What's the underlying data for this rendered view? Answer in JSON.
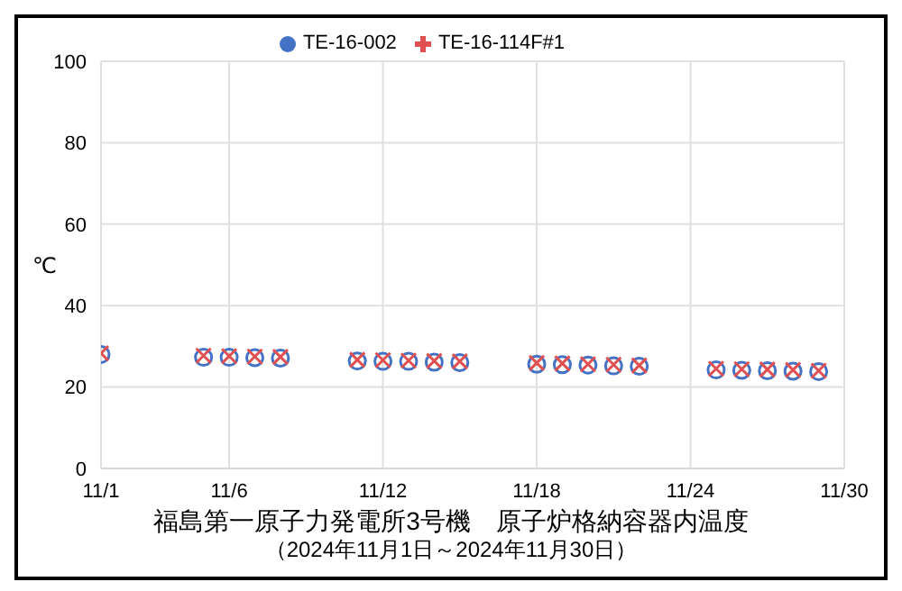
{
  "chart_data": {
    "type": "scatter",
    "title": "福島第一原子力発電所3号機　原子炉格納容器内温度",
    "subtitle": "（2024年11月1日～2024年11月30日）",
    "ylabel": "℃",
    "x": [
      "2024-11-01",
      "2024-11-05",
      "2024-11-06",
      "2024-11-07",
      "2024-11-08",
      "2024-11-11",
      "2024-11-12",
      "2024-11-13",
      "2024-11-14",
      "2024-11-15",
      "2024-11-18",
      "2024-11-19",
      "2024-11-20",
      "2024-11-21",
      "2024-11-22",
      "2024-11-25",
      "2024-11-26",
      "2024-11-27",
      "2024-11-28",
      "2024-11-29"
    ],
    "series": [
      {
        "name": "TE-16-002",
        "color": "#4472c4",
        "marker": "circle",
        "values": [
          28.0,
          27.3,
          27.3,
          27.2,
          27.1,
          26.4,
          26.3,
          26.3,
          26.1,
          26.0,
          25.6,
          25.5,
          25.4,
          25.2,
          25.1,
          24.2,
          24.1,
          24.0,
          23.9,
          23.8
        ]
      },
      {
        "name": "TE-16-114F#1",
        "color": "#e05050",
        "marker": "cross",
        "values": [
          28.3,
          27.7,
          27.6,
          27.5,
          27.4,
          26.7,
          26.6,
          26.5,
          26.4,
          26.3,
          25.9,
          25.8,
          25.6,
          25.5,
          25.3,
          24.5,
          24.4,
          24.3,
          24.2,
          24.0
        ]
      }
    ],
    "xlim": [
      "2024-11-01",
      "2024-11-30"
    ],
    "xticks": [
      {
        "value": "2024-11-01",
        "label": "11/1"
      },
      {
        "value": "2024-11-06",
        "label": "11/6"
      },
      {
        "value": "2024-11-12",
        "label": "11/12"
      },
      {
        "value": "2024-11-18",
        "label": "11/18"
      },
      {
        "value": "2024-11-24",
        "label": "11/24"
      },
      {
        "value": "2024-11-30",
        "label": "11/30"
      }
    ],
    "ylim": [
      0,
      100
    ],
    "yticks": [
      0,
      20,
      40,
      60,
      80,
      100
    ],
    "grid": true,
    "legend": "top"
  }
}
